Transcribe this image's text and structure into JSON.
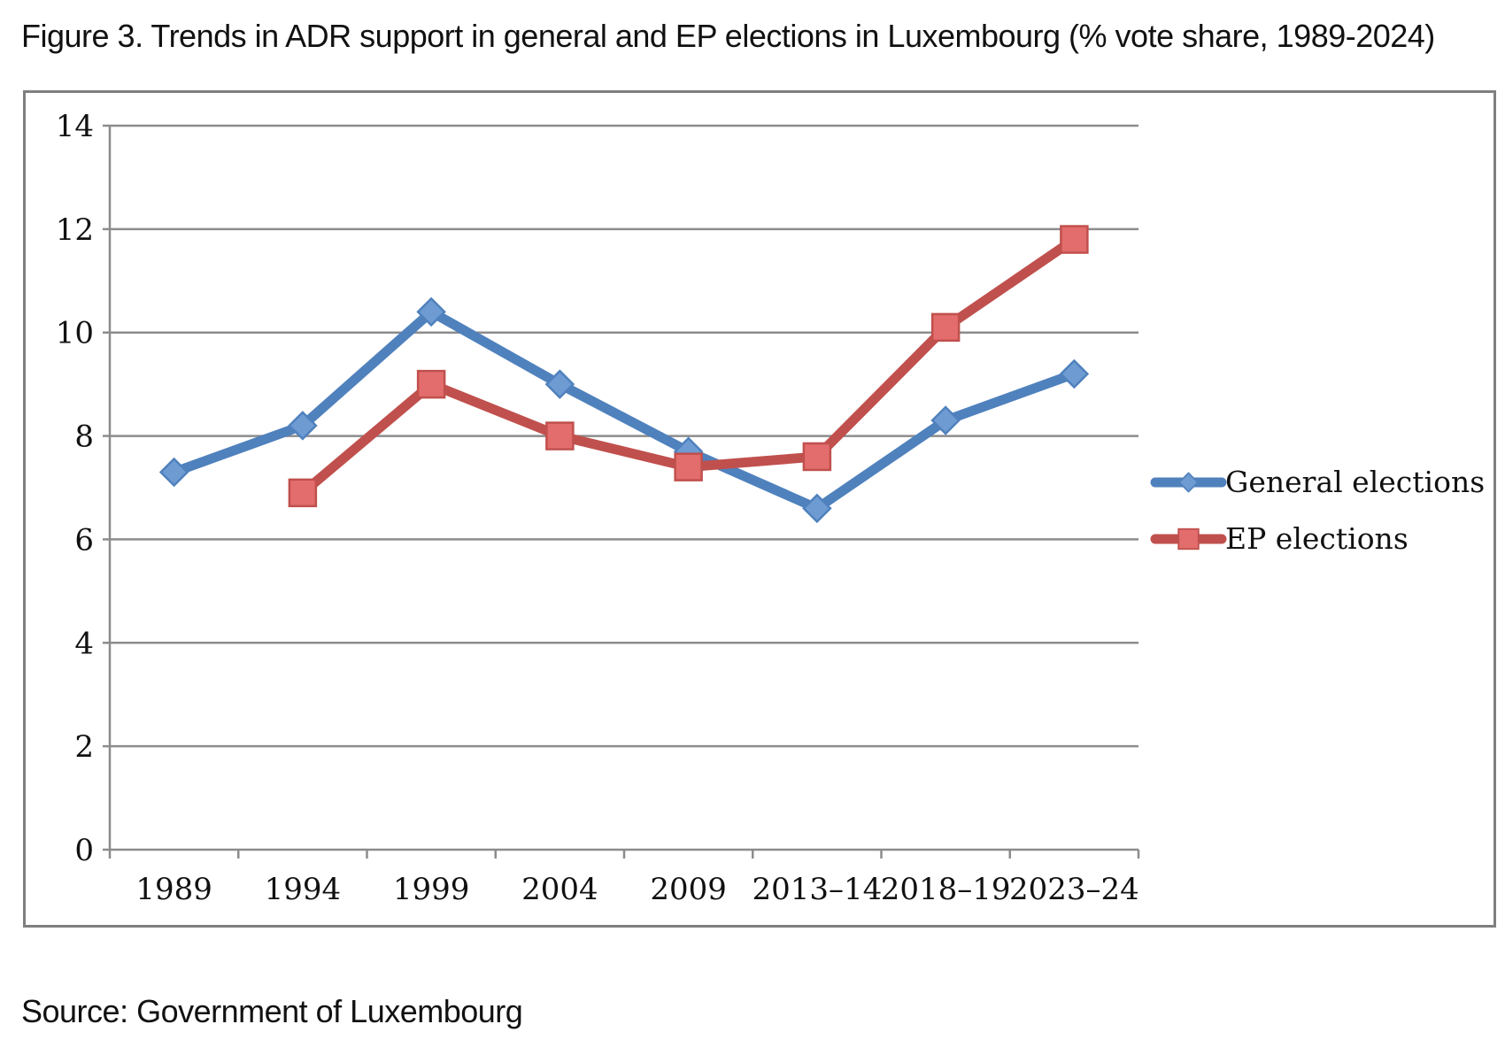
{
  "header": {
    "title": "Figure 3. Trends in ADR support in general and EP elections in Luxembourg (% vote share, 1989-2024)"
  },
  "footer": {
    "source": "Source: Government of Luxembourg"
  },
  "chart_data": {
    "type": "line",
    "title": "",
    "xlabel": "",
    "ylabel": "",
    "categories": [
      "1989",
      "1994",
      "1999",
      "2004",
      "2009",
      "2013–14",
      "2018–19",
      "2023–24"
    ],
    "ylim": [
      0,
      14
    ],
    "yticks": [
      "0",
      "2",
      "4",
      "6",
      "8",
      "10",
      "12",
      "14"
    ],
    "grid": true,
    "legend_position": "right",
    "series": [
      {
        "name": "General elections",
        "color": "#4f81bd",
        "marker": "diamond",
        "values": [
          7.3,
          8.2,
          10.4,
          9.0,
          7.7,
          6.6,
          8.3,
          9.2
        ]
      },
      {
        "name": "EP elections",
        "color": "#c0504d",
        "marker": "square",
        "values": [
          null,
          6.9,
          9.0,
          8.0,
          7.4,
          7.6,
          10.1,
          11.8
        ]
      }
    ]
  }
}
